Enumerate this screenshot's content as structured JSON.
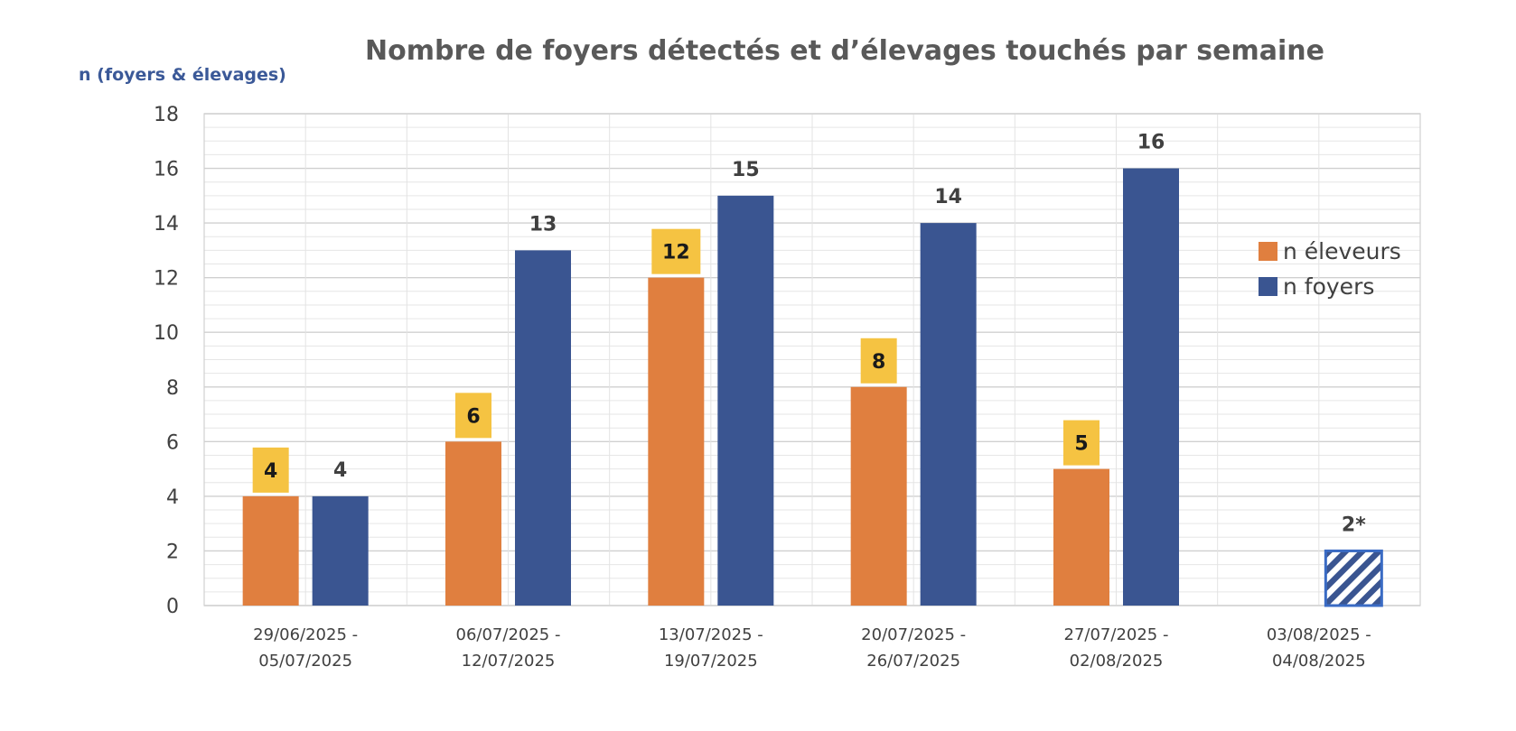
{
  "chart_data": {
    "type": "bar",
    "title": "Nombre de foyers détectés et d’élevages touchés par semaine",
    "ylabel": "n (foyers & élevages)",
    "xlabel": "",
    "ylim": [
      0,
      18
    ],
    "yticks": [
      "0",
      "2",
      "4",
      "6",
      "8",
      "10",
      "12",
      "14",
      "16",
      "18"
    ],
    "categories": [
      [
        "29/06/2025 -",
        "05/07/2025"
      ],
      [
        "06/07/2025 -",
        "12/07/2025"
      ],
      [
        "13/07/2025 -",
        "19/07/2025"
      ],
      [
        "20/07/2025 -",
        "26/07/2025"
      ],
      [
        "27/07/2025 -",
        "02/08/2025"
      ],
      [
        "03/08/2025 -",
        "04/08/2025"
      ]
    ],
    "series": [
      {
        "name": "n éleveurs",
        "color": "#e07f3f",
        "label_bg": "#f5c342",
        "values": [
          4,
          6,
          12,
          8,
          5,
          null
        ],
        "labels": [
          "4",
          "6",
          "12",
          "8",
          "5",
          ""
        ]
      },
      {
        "name": "n foyers",
        "color": "#3a5591",
        "values": [
          4,
          13,
          15,
          14,
          16,
          2
        ],
        "labels": [
          "4",
          "13",
          "15",
          "14",
          "16",
          "2*"
        ],
        "hatched": [
          false,
          false,
          false,
          false,
          false,
          true
        ]
      }
    ],
    "grid": true,
    "minor_grid": true,
    "legend": "right"
  }
}
